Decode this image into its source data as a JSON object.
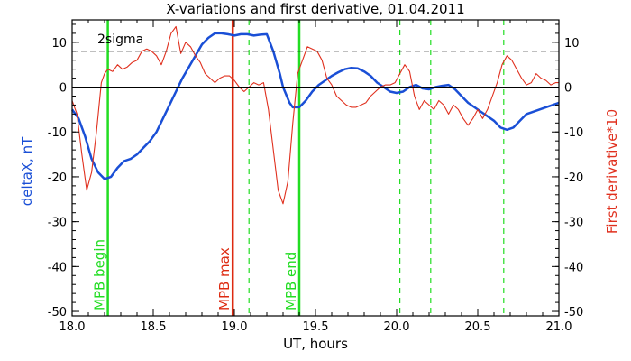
{
  "chart_data": {
    "type": "line",
    "title": "X-variations and first derivative, 01.04.2011",
    "xlabel": "UT, hours",
    "ylabel_left": "deltaX, nT",
    "ylabel_right": "First derivative*10",
    "xlim": [
      18.0,
      21.0
    ],
    "ylim": [
      -51,
      15
    ],
    "x_ticks": [
      "18.0",
      "18.5",
      "19.0",
      "19.5",
      "20.0",
      "20.5",
      "21.0"
    ],
    "y_ticks": [
      {
        "v": 10,
        "label": "10"
      },
      {
        "v": 0,
        "label": "0"
      },
      {
        "v": -10,
        "label": "-10"
      },
      {
        "v": -20,
        "label": "-20"
      },
      {
        "v": -30,
        "label": "-30"
      },
      {
        "v": -40,
        "label": "-40"
      },
      {
        "v": -50,
        "label": "-50"
      }
    ],
    "threshold": {
      "label": "2sigma",
      "y": 8
    },
    "zero_line": 0,
    "series": [
      {
        "color": "#1a4fd6",
        "x": [
          18.0,
          18.04,
          18.08,
          18.12,
          18.16,
          18.2,
          18.24,
          18.28,
          18.32,
          18.36,
          18.4,
          18.44,
          18.48,
          18.52,
          18.56,
          18.6,
          18.64,
          18.68,
          18.72,
          18.76,
          18.8,
          18.84,
          18.88,
          18.92,
          18.96,
          19.0,
          19.04,
          19.08,
          19.12,
          19.16,
          19.2,
          19.24,
          19.28,
          19.3,
          19.34,
          19.36,
          19.4,
          19.44,
          19.48,
          19.52,
          19.56,
          19.6,
          19.64,
          19.68,
          19.72,
          19.76,
          19.8,
          19.84,
          19.88,
          19.92,
          19.96,
          20.0,
          20.04,
          20.08,
          20.12,
          20.16,
          20.2,
          20.24,
          20.28,
          20.32,
          20.36,
          20.4,
          20.44,
          20.48,
          20.52,
          20.56,
          20.6,
          20.64,
          20.68,
          20.72,
          20.76,
          20.8,
          20.84,
          20.88,
          20.92,
          20.96,
          21.0
        ],
        "y": [
          -5,
          -7,
          -11,
          -16,
          -19,
          -20.5,
          -20,
          -18,
          -16.5,
          -16,
          -15,
          -13.5,
          -12,
          -10,
          -7,
          -4,
          -1,
          2,
          4.5,
          7,
          9.5,
          11,
          12,
          12,
          11.8,
          11.5,
          11.8,
          11.8,
          11.5,
          11.7,
          11.8,
          8,
          3,
          0,
          -3.5,
          -4.5,
          -4.5,
          -3,
          -1,
          0.5,
          1.5,
          2.5,
          3.3,
          4,
          4.3,
          4.2,
          3.5,
          2.5,
          1,
          0,
          -1,
          -1.3,
          -1,
          0,
          0.5,
          -0.3,
          -0.5,
          0,
          0.3,
          0.5,
          -0.5,
          -2,
          -3.5,
          -4.5,
          -5.5,
          -6.5,
          -7.5,
          -9,
          -9.5,
          -9,
          -7.5,
          -6,
          -5.5,
          -5,
          -4.5,
          -4,
          -3.5
        ]
      },
      {
        "color": "#e0301e",
        "x": [
          18.0,
          18.03,
          18.06,
          18.09,
          18.12,
          18.15,
          18.18,
          18.2,
          18.22,
          18.25,
          18.28,
          18.31,
          18.34,
          18.37,
          18.4,
          18.43,
          18.46,
          18.49,
          18.52,
          18.55,
          18.58,
          18.61,
          18.64,
          18.67,
          18.7,
          18.73,
          18.76,
          18.79,
          18.82,
          18.85,
          18.88,
          18.91,
          18.94,
          18.97,
          19.0,
          19.03,
          19.06,
          19.09,
          19.12,
          19.15,
          19.18,
          19.21,
          19.24,
          19.27,
          19.3,
          19.33,
          19.36,
          19.39,
          19.42,
          19.45,
          19.48,
          19.51,
          19.54,
          19.57,
          19.6,
          19.63,
          19.66,
          19.69,
          19.72,
          19.75,
          19.78,
          19.81,
          19.84,
          19.87,
          19.9,
          19.93,
          19.96,
          19.99,
          20.02,
          20.05,
          20.08,
          20.11,
          20.14,
          20.17,
          20.2,
          20.23,
          20.26,
          20.29,
          20.32,
          20.35,
          20.38,
          20.41,
          20.44,
          20.47,
          20.5,
          20.53,
          20.56,
          20.59,
          20.62,
          20.65,
          20.68,
          20.71,
          20.74,
          20.77,
          20.8,
          20.83,
          20.86,
          20.89,
          20.92,
          20.95,
          20.98,
          21.0
        ],
        "y": [
          -3,
          -6,
          -15,
          -23,
          -19,
          -10,
          1,
          3,
          4,
          3.5,
          5,
          4,
          4.5,
          5.5,
          6,
          8,
          8.5,
          8,
          7,
          5,
          8,
          12,
          13.5,
          7.5,
          10,
          9,
          7,
          5.5,
          3,
          2,
          1,
          2,
          2.5,
          2.5,
          1.5,
          0,
          -1,
          0,
          1,
          0.5,
          1,
          -5,
          -14,
          -23,
          -26,
          -21,
          -8,
          3,
          6,
          9,
          8.5,
          8,
          6,
          2,
          0.5,
          -2,
          -3,
          -4,
          -4.5,
          -4.5,
          -4,
          -3.5,
          -2,
          -1,
          0,
          0.5,
          0.5,
          1,
          3,
          5,
          3.5,
          -2,
          -5,
          -3,
          -4,
          -5,
          -3,
          -4,
          -6,
          -4,
          -5,
          -7,
          -8.5,
          -7,
          -5,
          -7,
          -5,
          -2,
          1,
          5,
          7,
          6,
          4,
          2,
          0.5,
          1,
          3,
          2,
          1.5,
          0.5,
          1,
          1
        ]
      }
    ],
    "vertical_markers": [
      {
        "x": 18.22,
        "color": "#22dd22",
        "style": "solid",
        "label": "MPB begin"
      },
      {
        "x": 18.99,
        "color": "#dd2a10",
        "style": "solid",
        "label": "MPB max"
      },
      {
        "x": 19.09,
        "color": "#22dd22",
        "style": "dashed",
        "label": ""
      },
      {
        "x": 19.4,
        "color": "#22dd22",
        "style": "solid",
        "label": "MPB end"
      },
      {
        "x": 20.02,
        "color": "#22dd22",
        "style": "dashed",
        "label": ""
      },
      {
        "x": 20.21,
        "color": "#22dd22",
        "style": "dashed",
        "label": ""
      },
      {
        "x": 20.66,
        "color": "#22dd22",
        "style": "dashed",
        "label": ""
      }
    ],
    "grid": false
  }
}
